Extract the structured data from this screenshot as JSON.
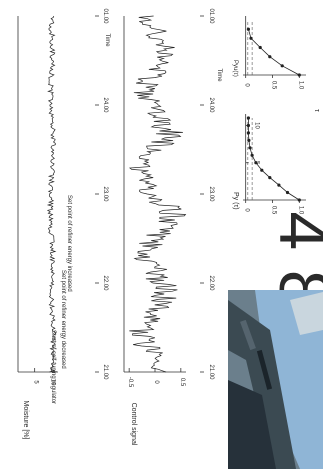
{
  "chart_data": [
    {
      "type": "line",
      "ylabel": "Moisture [%]",
      "xlabel": "Time",
      "x_ticks": [
        "21.00",
        "22.00",
        "23.00",
        "24.00",
        "01.00"
      ],
      "y_ticks": [
        "10",
        "5"
      ],
      "ylim": [
        0,
        12
      ],
      "annotations": [
        "Start of self-tuning regulator",
        "Set point of refiner energy decreased",
        "Set point of refiner energy increased"
      ],
      "series": [
        {
          "values": [
            10.2,
            10.6,
            9.9,
            10.4,
            9.7,
            10.1,
            10.5,
            9.8,
            10.3,
            10.0
          ]
        }
      ]
    },
    {
      "type": "line",
      "ylabel": "Control signal",
      "xlabel": "Time",
      "x_ticks": [
        "21.00",
        "22.00",
        "23.00",
        "24.00",
        "01.00"
      ],
      "y_ticks": [
        "0.5",
        "0",
        "-0.5"
      ],
      "ylim": [
        -0.6,
        0.6
      ],
      "series": [
        {
          "values": [
            0.05,
            -0.3,
            0.25,
            -0.2,
            0.35,
            -0.35,
            0.3,
            -0.25,
            0.2,
            -0.1
          ]
        }
      ]
    },
    {
      "type": "line",
      "ylabel": "Py (τ)",
      "x_ticks": [
        "5",
        "10"
      ],
      "y_ticks": [
        "1.0",
        "0.5",
        "0"
      ],
      "xlim": [
        0,
        11
      ],
      "ylim": [
        -0.05,
        1.05
      ],
      "x_axis_label_glyph": "τ",
      "series": [
        {
          "x": [
            0,
            1,
            2,
            3,
            4,
            5,
            6,
            7,
            8,
            9,
            10,
            11
          ],
          "values": [
            1.0,
            0.78,
            0.62,
            0.45,
            0.3,
            0.19,
            0.12,
            0.08,
            0.06,
            0.05,
            0.05,
            0.05
          ]
        }
      ]
    },
    {
      "type": "line",
      "ylabel": "Pyu(τ)",
      "y_ticks": [
        "1.0",
        "0.5",
        "0"
      ],
      "xlim": [
        0,
        3
      ],
      "ylim": [
        -0.05,
        1.05
      ],
      "series": [
        {
          "x": [
            0,
            0.5,
            1,
            1.5,
            2,
            2.5
          ],
          "values": [
            1.0,
            0.68,
            0.45,
            0.27,
            0.1,
            0.05
          ]
        }
      ]
    }
  ],
  "watermark_text": "4 8",
  "photo": {
    "sky_color": "#8fb5d6",
    "machine_color": "#3b4a52"
  }
}
